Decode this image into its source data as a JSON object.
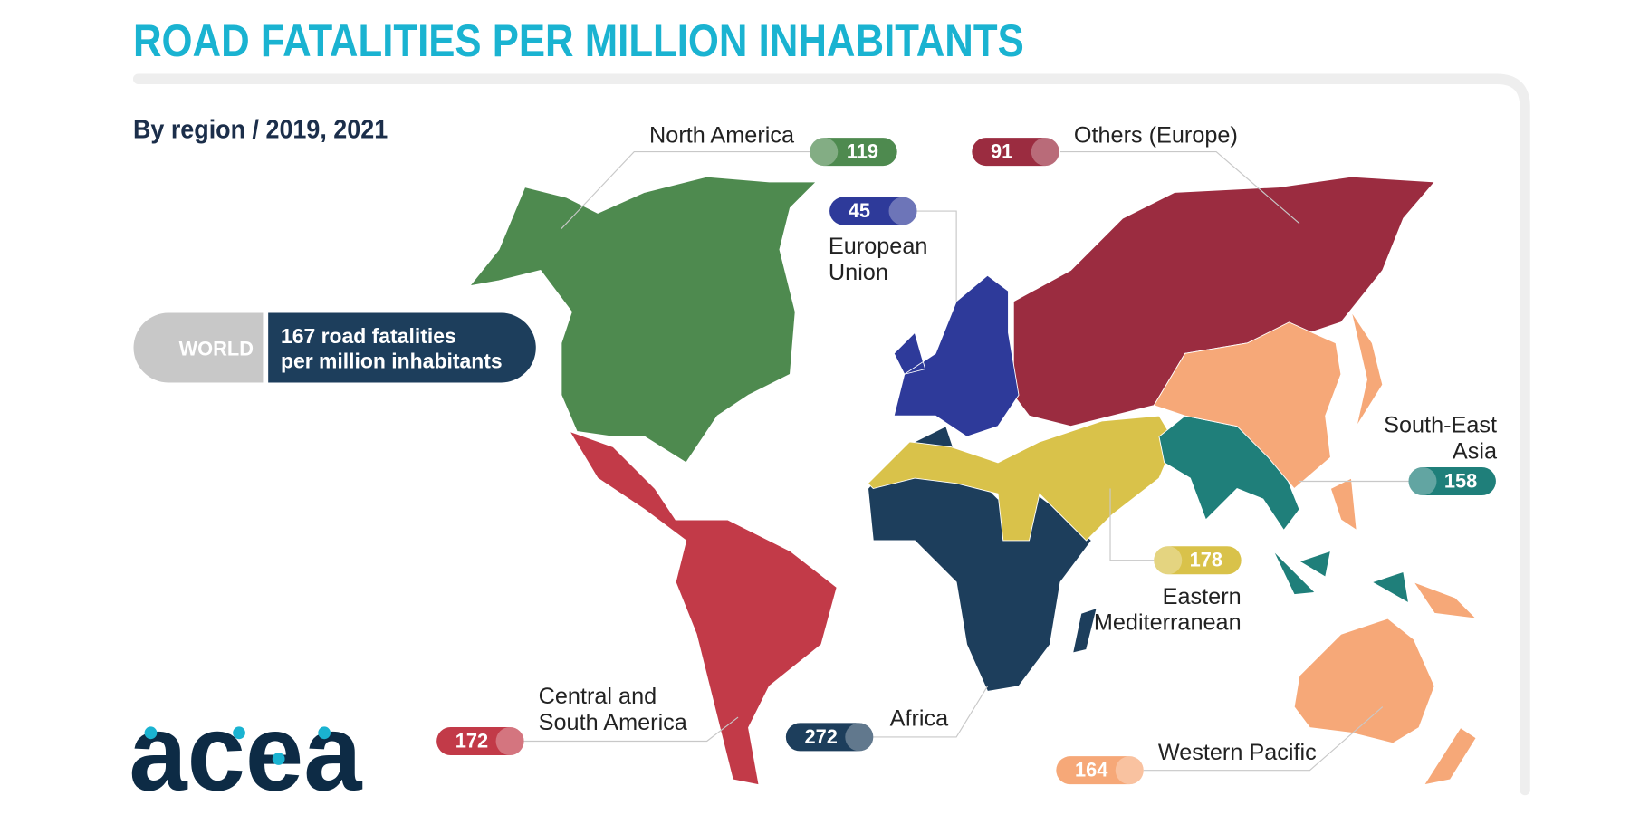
{
  "title": "ROAD FATALITIES PER MILLION INHABITANTS",
  "subtitle": "By region / 2019, 2021",
  "world": {
    "label": "WORLD",
    "lines": [
      "167 road fatalities",
      "per million inhabitants"
    ]
  },
  "regions": [
    {
      "name_lines": [
        "North America"
      ],
      "value": 119,
      "color": "#4e8a4f"
    },
    {
      "name_lines": [
        "Others (Europe)"
      ],
      "value": 91,
      "color": "#9b2c40"
    },
    {
      "name_lines": [
        "European",
        "Union"
      ],
      "value": 45,
      "color": "#2e3a9a"
    },
    {
      "name_lines": [
        "South-East",
        "Asia"
      ],
      "value": 158,
      "color": "#1f7f7a"
    },
    {
      "name_lines": [
        "Eastern",
        "Mediterranean"
      ],
      "value": 178,
      "color": "#d9c24a"
    },
    {
      "name_lines": [
        "Western Pacific"
      ],
      "value": 164,
      "color": "#f6a878"
    },
    {
      "name_lines": [
        "Africa"
      ],
      "value": 272,
      "color": "#1d3e5c"
    },
    {
      "name_lines": [
        "Central and",
        "South America"
      ],
      "value": 172,
      "color": "#c23a48"
    }
  ],
  "logo": "acea"
}
